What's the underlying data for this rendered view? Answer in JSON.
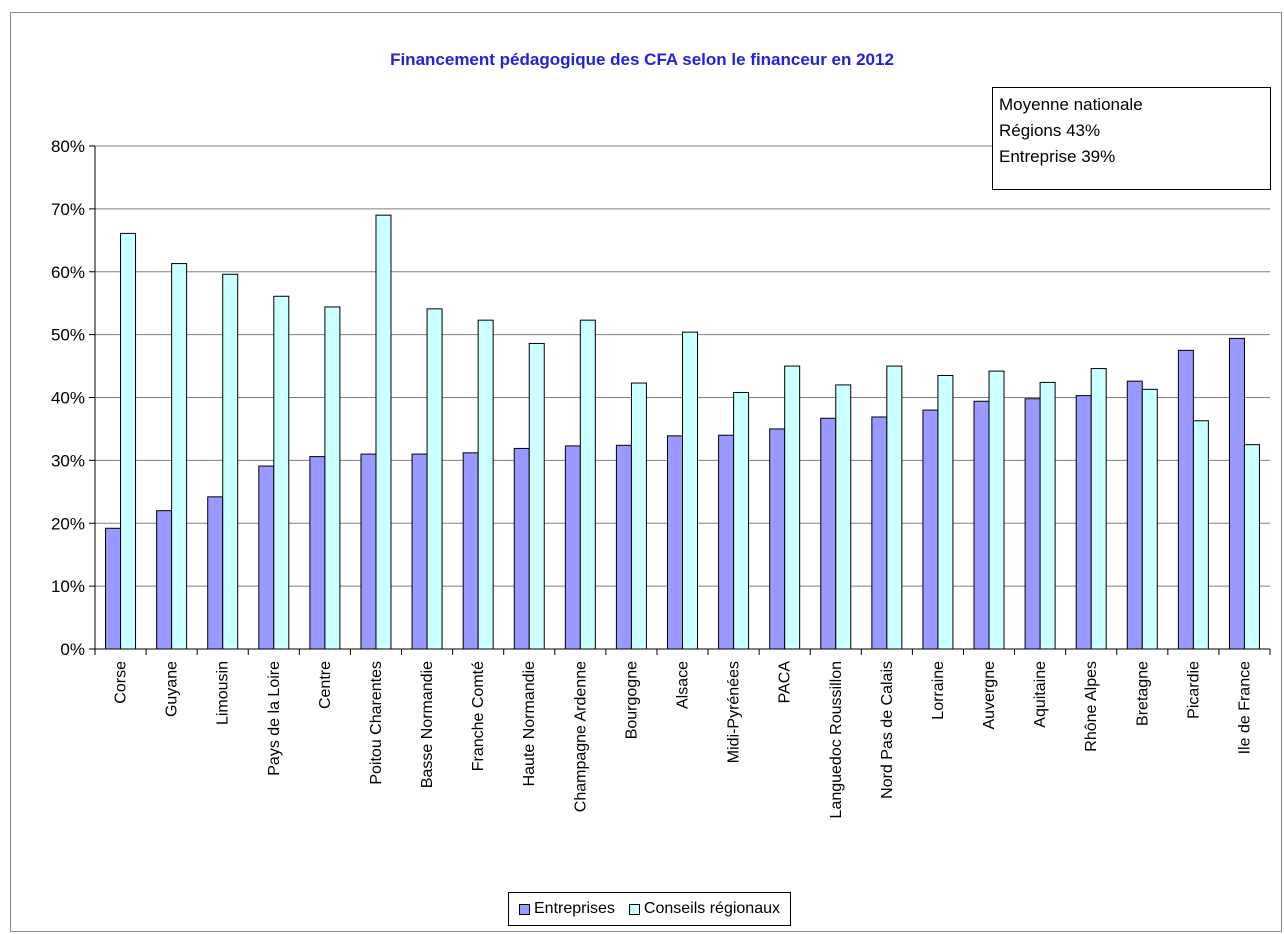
{
  "chart_data": {
    "type": "bar",
    "title": "Financement pédagogique des CFA selon le financeur en 2012",
    "xlabel": "",
    "ylabel": "",
    "ylim": [
      0,
      80
    ],
    "y_ticks": [
      "0%",
      "10%",
      "20%",
      "30%",
      "40%",
      "50%",
      "60%",
      "70%",
      "80%"
    ],
    "grid": true,
    "legend_position": "bottom",
    "categories": [
      "Corse",
      "Guyane",
      "Limousin",
      "Pays de la Loire",
      "Centre",
      "Poitou Charentes",
      "Basse Normandie",
      "Franche Comté",
      "Haute Normandie",
      "Champagne Ardenne",
      "Bourgogne",
      "Alsace",
      "Midi-Pyrénées",
      "PACA",
      "Languedoc Roussillon",
      "Nord Pas de Calais",
      "Lorraine",
      "Auvergne",
      "Aquitaine",
      "Rhône Alpes",
      "Bretagne",
      "Picardie",
      "Ile de France"
    ],
    "series": [
      {
        "name": "Entreprises",
        "color": "#9999ff",
        "values": [
          19.2,
          22,
          24.2,
          29.1,
          30.6,
          31,
          31,
          31.2,
          31.9,
          32.3,
          32.4,
          33.9,
          34,
          35,
          36.7,
          36.9,
          38,
          39.4,
          39.8,
          40.3,
          42.6,
          47.5,
          49.4
        ]
      },
      {
        "name": "Conseils régionaux",
        "color": "#ccffff",
        "values": [
          66.1,
          61.3,
          59.6,
          56.1,
          54.4,
          69,
          54.1,
          52.3,
          48.6,
          52.3,
          42.3,
          50.4,
          40.8,
          45,
          42,
          45,
          43.5,
          44.2,
          42.4,
          44.6,
          41.3,
          36.3,
          32.5
        ]
      }
    ],
    "annotation": {
      "lines": [
        "Moyenne nationale",
        "Régions 43%",
        "Entreprise 39%"
      ]
    }
  }
}
